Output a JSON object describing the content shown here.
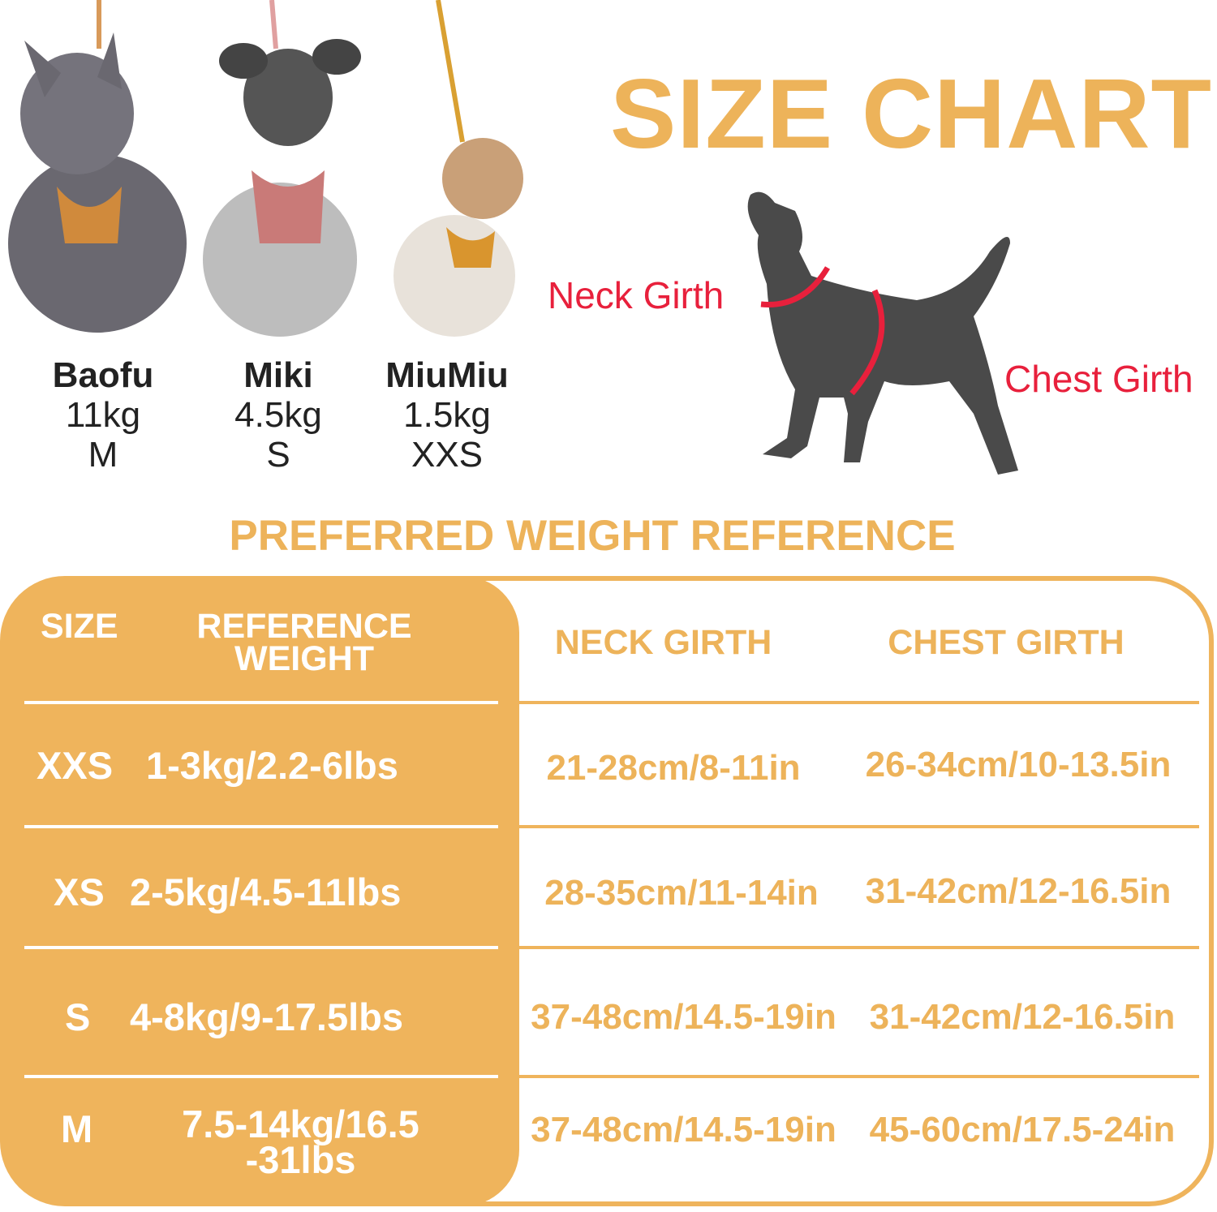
{
  "title": "SIZE CHART",
  "diagram": {
    "neck_label": "Neck Girth",
    "chest_label": "Chest Girth"
  },
  "dogs": [
    {
      "name": "Baofu",
      "weight": "11kg",
      "size": "M"
    },
    {
      "name": "Miki",
      "weight": "4.5kg",
      "size": "S"
    },
    {
      "name": "MiuMiu",
      "weight": "1.5kg",
      "size": "XXS"
    }
  ],
  "subtitle": "PREFERRED WEIGHT REFERENCE",
  "table": {
    "headers": {
      "size": "SIZE",
      "weight_line1": "REFERENCE",
      "weight_line2": "WEIGHT",
      "neck": "NECK GIRTH",
      "chest": "CHEST GIRTH"
    },
    "rows": [
      {
        "size": "XXS",
        "weight": "1-3kg/2.2-6lbs",
        "weight2": "",
        "neck": "21-28cm/8-11in",
        "chest": "26-34cm/10-13.5in"
      },
      {
        "size": "XS",
        "weight": "2-5kg/4.5-11lbs",
        "weight2": "",
        "neck": "28-35cm/11-14in",
        "chest": "31-42cm/12-16.5in"
      },
      {
        "size": "S",
        "weight": "4-8kg/9-17.5lbs",
        "weight2": "",
        "neck": "37-48cm/14.5-19in",
        "chest": "31-42cm/12-16.5in"
      },
      {
        "size": "M",
        "weight": "7.5-14kg/16.5",
        "weight2": "-31lbs",
        "neck": "37-48cm/14.5-19in",
        "chest": "45-60cm/17.5-24in"
      }
    ]
  },
  "colors": {
    "accent": "#EFB45C",
    "girth_red": "#E8203C",
    "silhouette": "#4a4a4a"
  }
}
